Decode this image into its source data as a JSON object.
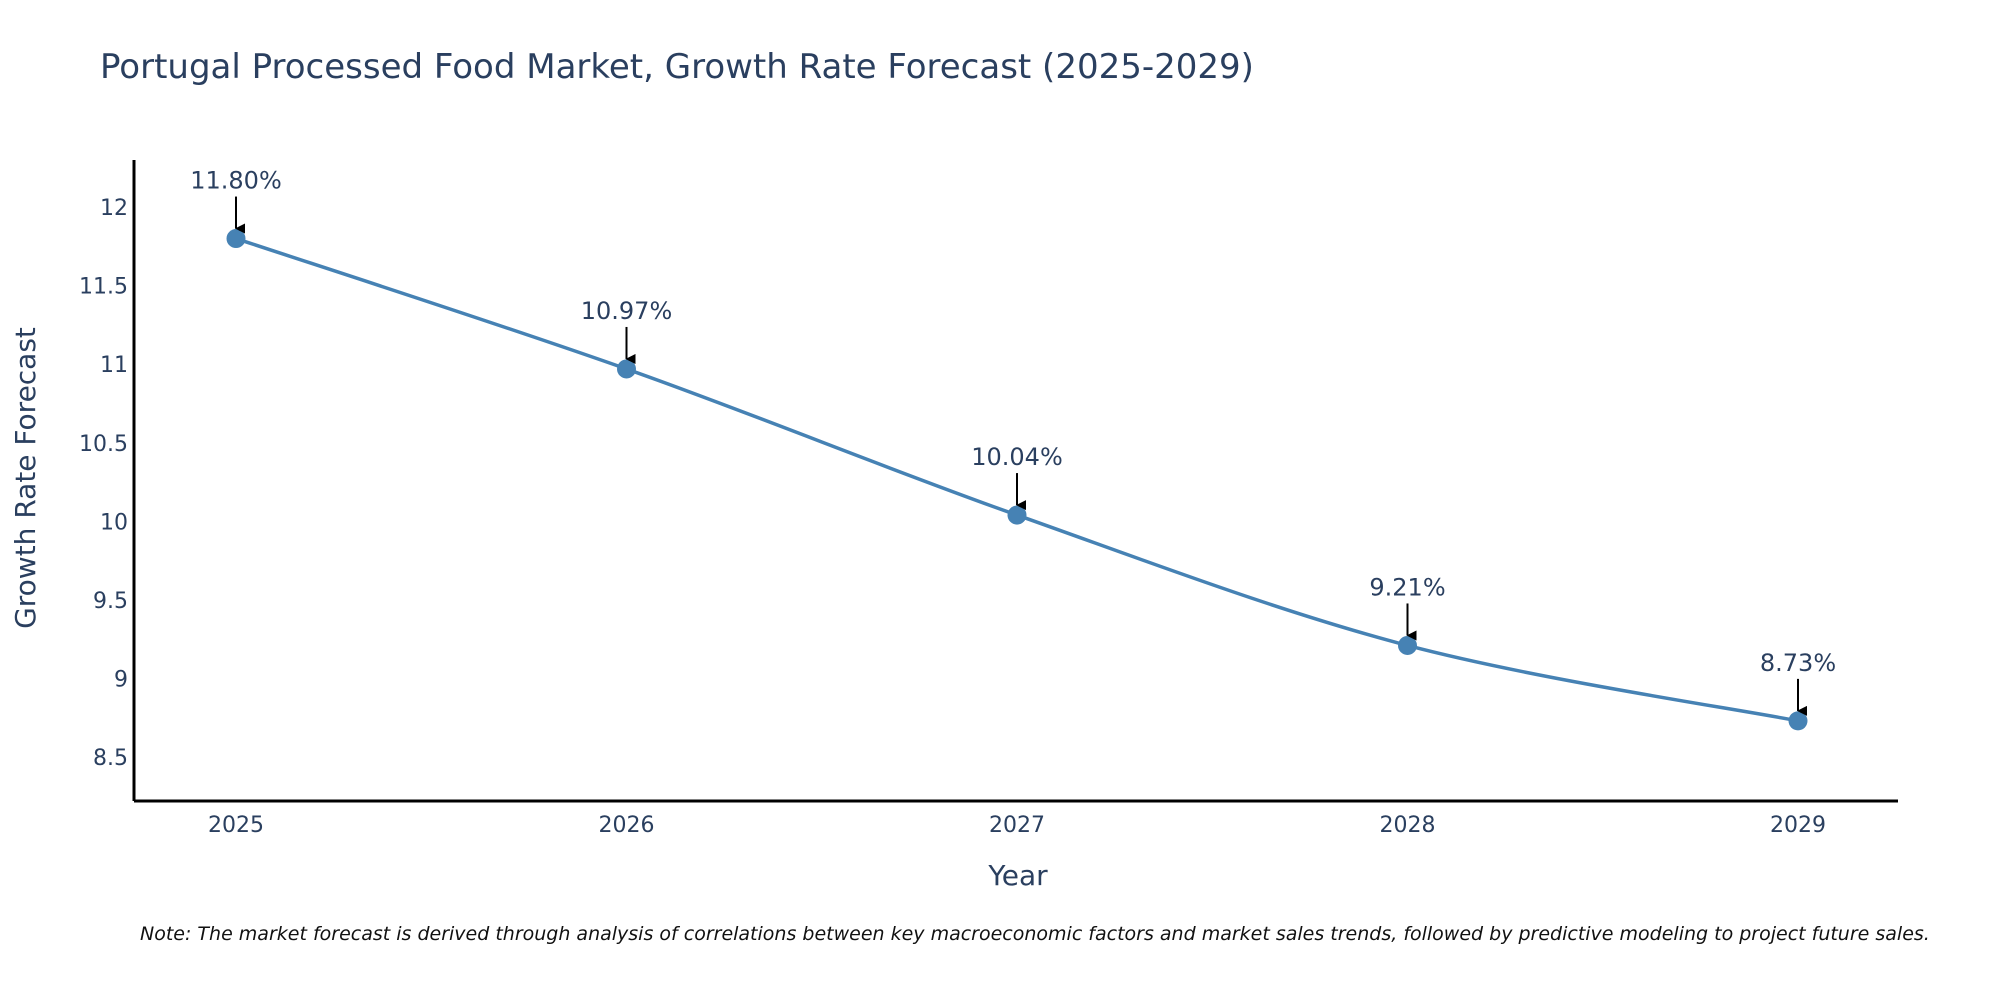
{
  "chart_data": {
    "type": "line",
    "title": "Portugal Processed Food Market, Growth Rate Forecast (2025-2029)",
    "xlabel": "Year",
    "ylabel": "Growth Rate Forecast",
    "categories": [
      "2025",
      "2026",
      "2027",
      "2028",
      "2029"
    ],
    "series": [
      {
        "name": "Growth Rate Forecast",
        "values": [
          11.8,
          10.97,
          10.04,
          9.21,
          8.73
        ],
        "labels": [
          "11.80%",
          "10.97%",
          "10.04%",
          "9.21%",
          "8.73%"
        ]
      }
    ],
    "ylim": [
      8.22,
      12.3
    ],
    "yticks": [
      8.5,
      9,
      9.5,
      10,
      10.5,
      11,
      11.5,
      12
    ],
    "ytick_labels": [
      "8.5",
      "9",
      "9.5",
      "10",
      "10.5",
      "11",
      "11.5",
      "12"
    ],
    "grid": false,
    "note": "Note: The market forecast is derived through analysis of correlations between key macroeconomic factors and market sales trends, followed by predictive modeling to project future sales.",
    "colors": {
      "line": "#4682b4",
      "marker": "#4682b4",
      "text": "#2a3f5f",
      "axis": "#000000",
      "arrow": "#000000"
    }
  }
}
